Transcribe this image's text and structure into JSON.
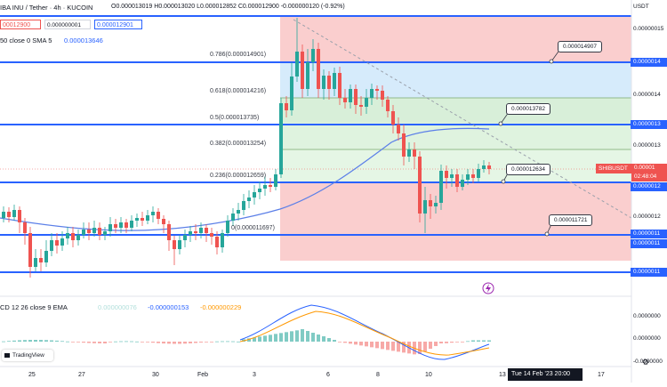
{
  "header": {
    "symbol": "IBA INU / Tether · 4h · KUCOIN",
    "ohlc": "O0.000013019 H0.000013020 L0.000012852 C0.000012900 -0.000000120 (-0.92%)",
    "currency": "USDT"
  },
  "price_boxes": {
    "sell": "00012900",
    "spread": "0.000000001",
    "buy": "0.000012901"
  },
  "sma": {
    "label": "50 close 0 SMA 5",
    "value": "0.000013646"
  },
  "fib": [
    {
      "label": "0.786(0.000014901)"
    },
    {
      "label": "0.618(0.000014216)"
    },
    {
      "label": "0.5(0.000013735)"
    },
    {
      "label": "0.382(0.000013254)"
    },
    {
      "label": "0.236(0.000012659)"
    },
    {
      "label": "0(0.000011697)"
    }
  ],
  "callouts": [
    {
      "text": "0.000014907"
    },
    {
      "text": "0.000013782"
    },
    {
      "text": "0.000012634"
    },
    {
      "text": "0.000011721"
    }
  ],
  "price_axis": {
    "labels": [
      "0.0000015",
      "0.0000014",
      "0.0000013",
      "0.0000012",
      "0.0000011",
      "0.0000011",
      "0.0000011"
    ],
    "top_label": "0.00000015",
    "shib_tag": "SHIBUSDT",
    "shib_price": "0.00001",
    "countdown": "02:48:04",
    "lower_right_label": "0.0000012",
    "lower_box_label": "0.0000012"
  },
  "macd": {
    "label": "CD 12 26 close 9 EMA",
    "v1": "0.000000076",
    "v2": "-0.000000153",
    "v3": "-0.000000229",
    "axis": [
      "0.0000000",
      "0.0000000",
      "-0.0000000"
    ]
  },
  "x_axis": [
    "25",
    "27",
    "30",
    "Feb",
    "3",
    "6",
    "8",
    "10",
    "13",
    "17"
  ],
  "x_axis_highlight": "Tue 14 Feb '23   20:00",
  "branding": "TradingView",
  "colors": {
    "up": "#26a69a",
    "down": "#ef5350",
    "line": "#2962ff",
    "sma": "#5b7fe8"
  }
}
